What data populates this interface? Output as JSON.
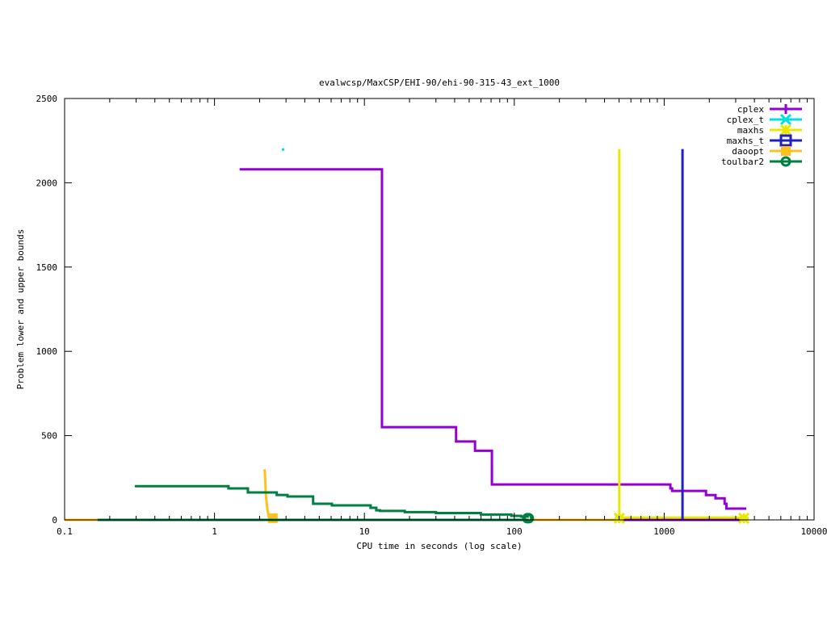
{
  "chart_data": {
    "type": "line",
    "title": "evalwcsp/MaxCSP/EHI-90/ehi-90-315-43_ext_1000",
    "xlabel": "CPU time in seconds (log scale)",
    "ylabel": "Problem lower and upper bounds",
    "xscale": "log",
    "xlim": [
      0.1,
      10000
    ],
    "ylim": [
      0,
      2500
    ],
    "xticks": [
      "0.1",
      "1",
      "10",
      "100",
      "1000",
      "10000"
    ],
    "xtick_values": [
      0.1,
      1,
      10,
      100,
      1000,
      10000
    ],
    "yticks": [
      "0",
      "500",
      "1000",
      "1500",
      "2000",
      "2500"
    ],
    "ytick_values": [
      0,
      500,
      1000,
      1500,
      2000,
      2500
    ],
    "grid": false,
    "legend_position": "top-right",
    "series": [
      {
        "name": "cplex",
        "color": "#9400d3",
        "marker": "plus",
        "lines": [
          {
            "style": "steps",
            "points": [
              [
                1.47,
                2080
              ],
              [
                13.1,
                550
              ],
              [
                40.9,
                465
              ],
              [
                54.7,
                410
              ],
              [
                70.9,
                210
              ],
              [
                1100,
                187
              ],
              [
                1130,
                172
              ],
              [
                1900,
                147
              ],
              [
                2200,
                128
              ],
              [
                2530,
                96
              ],
              [
                2600,
                67
              ],
              [
                3530,
                67
              ]
            ]
          },
          {
            "style": "steps",
            "points": [
              [
                470,
                0
              ],
              [
                3530,
                0
              ]
            ]
          }
        ],
        "markers": []
      },
      {
        "name": "cplex_t",
        "color": "#00e0e0",
        "marker": "cross",
        "lines": [
          {
            "style": "points",
            "points": [
              [
                2.85,
                2200
              ]
            ]
          }
        ],
        "markers": []
      },
      {
        "name": "daoopt",
        "color": "#ffc020",
        "marker": "filled-square",
        "lines": [
          {
            "style": "lines",
            "points": [
              [
                0.1,
                0
              ],
              [
                500,
                0
              ]
            ]
          },
          {
            "style": "lines",
            "points": [
              [
                2.15,
                300
              ],
              [
                2.17,
                280
              ],
              [
                2.2,
                150
              ],
              [
                2.25,
                67
              ],
              [
                2.3,
                19
              ],
              [
                2.45,
                10
              ]
            ]
          }
        ],
        "markers": [
          [
            2.45,
            10
          ]
        ]
      },
      {
        "name": "toulbar2",
        "color": "#008040",
        "marker": "circle",
        "lines": [
          {
            "style": "steps",
            "points": [
              [
                0.294,
                200
              ],
              [
                1.24,
                187
              ],
              [
                1.67,
                163
              ],
              [
                2.6,
                148
              ],
              [
                3.07,
                139
              ],
              [
                4.55,
                96
              ],
              [
                6.07,
                86
              ],
              [
                11.0,
                72
              ],
              [
                12.0,
                57
              ],
              [
                12.7,
                53
              ],
              [
                18.6,
                46
              ],
              [
                30.0,
                41
              ],
              [
                59.8,
                32
              ],
              [
                95.6,
                24
              ],
              [
                111,
                20
              ],
              [
                125,
                20
              ]
            ]
          },
          {
            "style": "steps",
            "points": [
              [
                0.166,
                0
              ],
              [
                125,
                0
              ]
            ]
          }
        ],
        "markers": [
          [
            122,
            10
          ],
          [
            125,
            10
          ]
        ]
      },
      {
        "name": "maxhs",
        "color": "#e8e800",
        "marker": "star",
        "lines": [
          {
            "style": "lines",
            "points": [
              [
                502,
                2200
              ],
              [
                502,
                14
              ],
              [
                3400,
                14
              ]
            ]
          }
        ],
        "markers": [
          [
            502,
            10
          ],
          [
            3400,
            10
          ]
        ]
      },
      {
        "name": "maxhs_t",
        "color": "#2020c0",
        "marker": "box",
        "lines": [
          {
            "style": "lines",
            "points": [
              [
                1325,
                2200
              ],
              [
                1325,
                0
              ]
            ]
          }
        ],
        "markers": []
      }
    ]
  }
}
